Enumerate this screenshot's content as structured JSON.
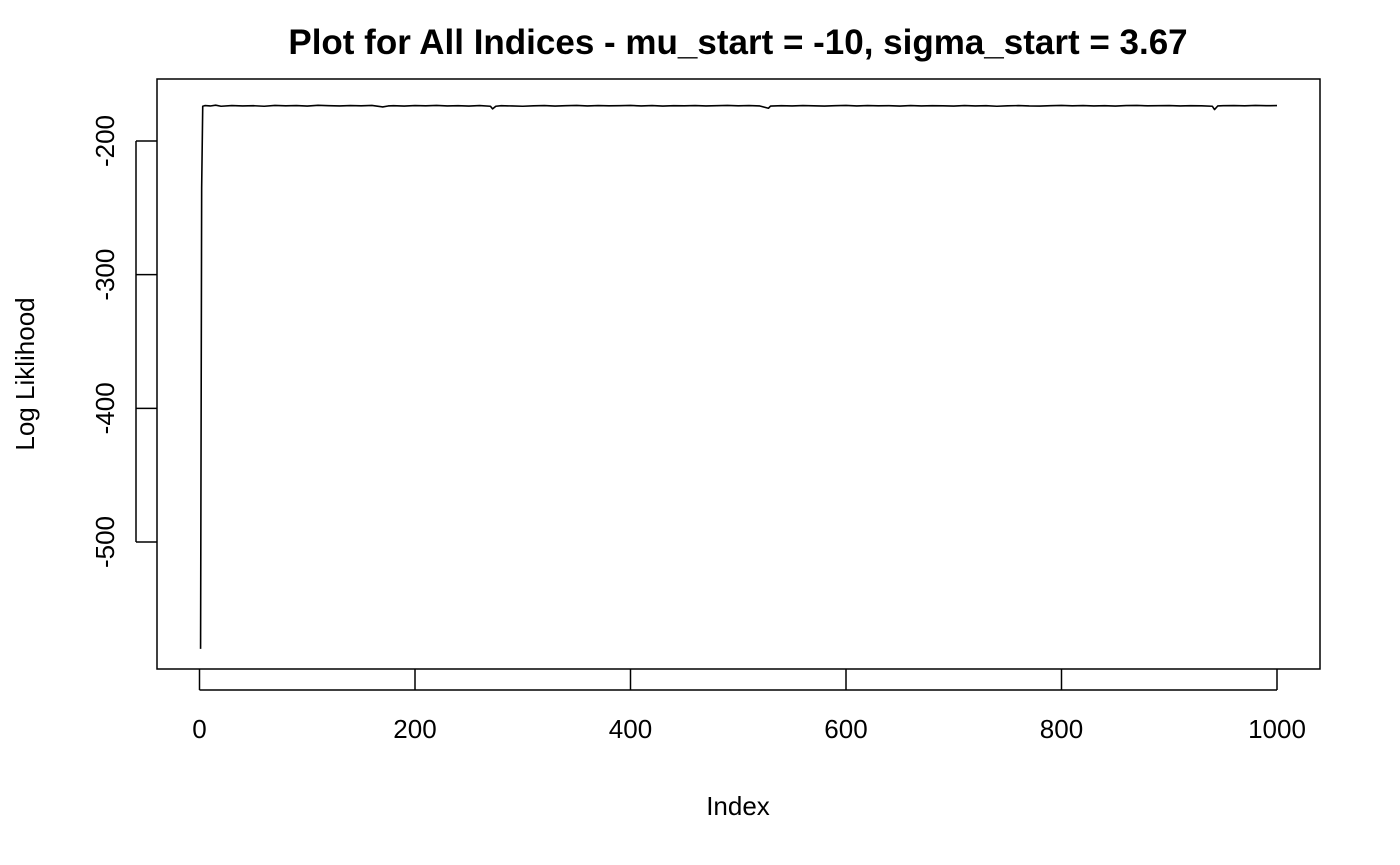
{
  "chart_data": {
    "type": "line",
    "title": "Plot for All Indices - mu_start = -10, sigma_start = 3.67",
    "xlabel": "Index",
    "ylabel": "Log Liklihood",
    "xlim": [
      1,
      1000
    ],
    "ylim": [
      -580,
      -172
    ],
    "x_ticks": [
      0,
      200,
      400,
      600,
      800,
      1000
    ],
    "x_tick_labels": [
      "0",
      "200",
      "400",
      "600",
      "800",
      "1000"
    ],
    "y_ticks": [
      -200,
      -300,
      -400,
      -500
    ],
    "y_tick_labels": [
      "-200",
      "-300",
      "-400",
      "-500"
    ],
    "grid": false,
    "line_color": "#000000",
    "series": [
      {
        "x": [
          1,
          2,
          3,
          5,
          10,
          15,
          20,
          30,
          40,
          50,
          60,
          70,
          80,
          90,
          100,
          110,
          120,
          130,
          140,
          150,
          160,
          170,
          175,
          180,
          190,
          200,
          210,
          220,
          230,
          240,
          250,
          260,
          270,
          272,
          275,
          280,
          290,
          300,
          310,
          320,
          330,
          340,
          350,
          360,
          370,
          380,
          390,
          400,
          410,
          420,
          430,
          440,
          450,
          460,
          470,
          480,
          490,
          500,
          510,
          520,
          528,
          530,
          540,
          550,
          560,
          570,
          580,
          590,
          600,
          610,
          620,
          630,
          640,
          650,
          660,
          670,
          680,
          690,
          700,
          710,
          720,
          730,
          740,
          750,
          760,
          770,
          780,
          790,
          800,
          810,
          820,
          830,
          840,
          850,
          860,
          870,
          880,
          890,
          900,
          910,
          920,
          930,
          940,
          942,
          945,
          950,
          960,
          970,
          980,
          990,
          1000
        ],
        "y": [
          -580,
          -235,
          -174,
          -173.5,
          -173.8,
          -173.2,
          -174,
          -173.5,
          -173.8,
          -173.6,
          -174,
          -173.4,
          -173.7,
          -173.5,
          -173.9,
          -173.3,
          -173.6,
          -173.8,
          -173.5,
          -173.7,
          -173.4,
          -174.5,
          -173.8,
          -173.6,
          -173.9,
          -173.5,
          -173.7,
          -173.4,
          -173.8,
          -173.6,
          -173.9,
          -173.5,
          -174,
          -176,
          -174,
          -173.6,
          -173.8,
          -174,
          -173.7,
          -173.5,
          -173.9,
          -173.6,
          -173.4,
          -173.8,
          -173.5,
          -173.7,
          -173.6,
          -173.4,
          -173.8,
          -173.5,
          -173.9,
          -173.6,
          -173.7,
          -173.5,
          -173.8,
          -173.6,
          -173.4,
          -173.7,
          -173.5,
          -173.8,
          -175.5,
          -173.9,
          -173.6,
          -173.8,
          -173.5,
          -173.7,
          -173.9,
          -173.6,
          -173.4,
          -173.8,
          -173.5,
          -173.7,
          -173.6,
          -173.9,
          -173.5,
          -173.8,
          -173.6,
          -173.7,
          -173.9,
          -173.5,
          -173.8,
          -173.6,
          -174,
          -173.7,
          -173.5,
          -173.8,
          -173.9,
          -173.6,
          -173.4,
          -173.7,
          -173.5,
          -173.8,
          -173.6,
          -173.9,
          -173.5,
          -173.4,
          -173.7,
          -173.6,
          -173.5,
          -173.8,
          -173.6,
          -173.7,
          -174,
          -176.5,
          -173.8,
          -173.6,
          -173.5,
          -173.7,
          -173.4,
          -173.6,
          -173.5
        ]
      }
    ]
  }
}
